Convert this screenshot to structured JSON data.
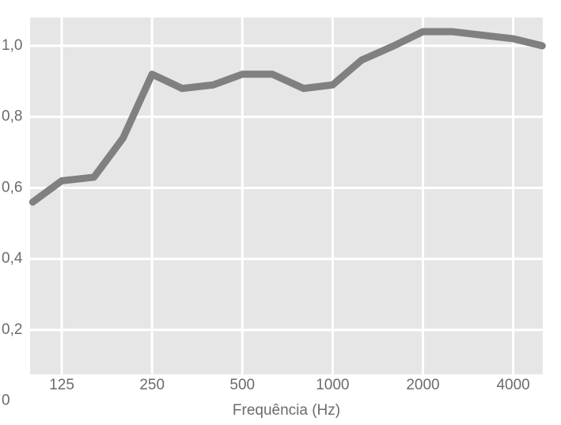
{
  "chart_data": {
    "type": "line",
    "x_label": "Frequência (Hz)",
    "x": [
      100,
      125,
      160,
      200,
      250,
      315,
      400,
      500,
      630,
      800,
      1000,
      1250,
      1600,
      2000,
      2500,
      3150,
      4000,
      5000
    ],
    "series": [
      {
        "color": "#808080",
        "values": [
          0.56,
          0.62,
          0.63,
          0.74,
          0.92,
          0.88,
          0.89,
          0.92,
          0.92,
          0.88,
          0.89,
          0.96,
          1.0,
          1.04,
          1.04,
          1.03,
          1.02,
          1.0
        ]
      }
    ],
    "xscale": "log",
    "xlim": [
      98,
      5020
    ],
    "xticks": [
      125,
      250,
      500,
      1000,
      2000,
      4000
    ],
    "ylim": [
      0.075,
      1.08
    ],
    "yticks": [
      0,
      {
        "value": 0.2,
        "label": "0,2"
      },
      {
        "value": 0.4,
        "label": "0,4"
      },
      {
        "value": 0.6,
        "label": "0,6"
      },
      {
        "value": 0.8,
        "label": "0,8"
      },
      {
        "value": 1.0,
        "label": "1,0"
      }
    ],
    "grid": true
  }
}
